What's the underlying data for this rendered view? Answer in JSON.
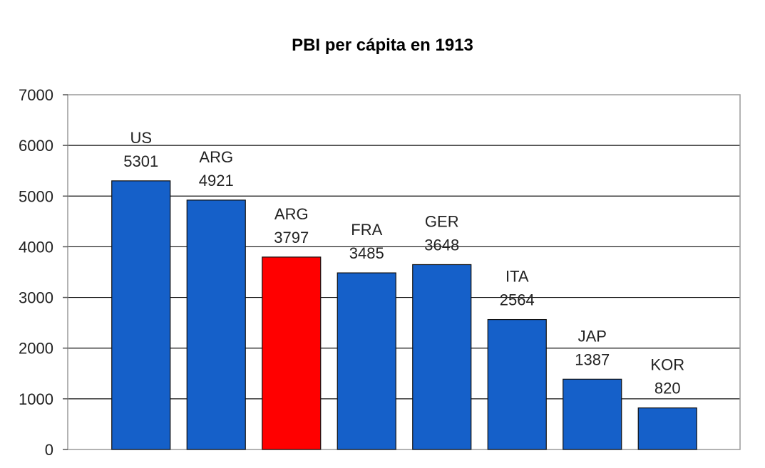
{
  "chart_data": {
    "type": "bar",
    "title": "PBI per cápita en 1913",
    "xlabel": "",
    "ylabel": "",
    "ylim": [
      0,
      7000
    ],
    "yticks": [
      0,
      1000,
      2000,
      3000,
      4000,
      5000,
      6000,
      7000
    ],
    "grid": true,
    "categories": [
      "US",
      "ARG",
      "ARG",
      "FRA",
      "GER",
      "ITA",
      "JAP",
      "KOR"
    ],
    "values": [
      5301,
      4921,
      3797,
      3485,
      3648,
      2564,
      1387,
      820
    ],
    "colors": [
      "#1560c9",
      "#1560c9",
      "#ff0000",
      "#1560c9",
      "#1560c9",
      "#1560c9",
      "#1560c9",
      "#1560c9"
    ]
  }
}
